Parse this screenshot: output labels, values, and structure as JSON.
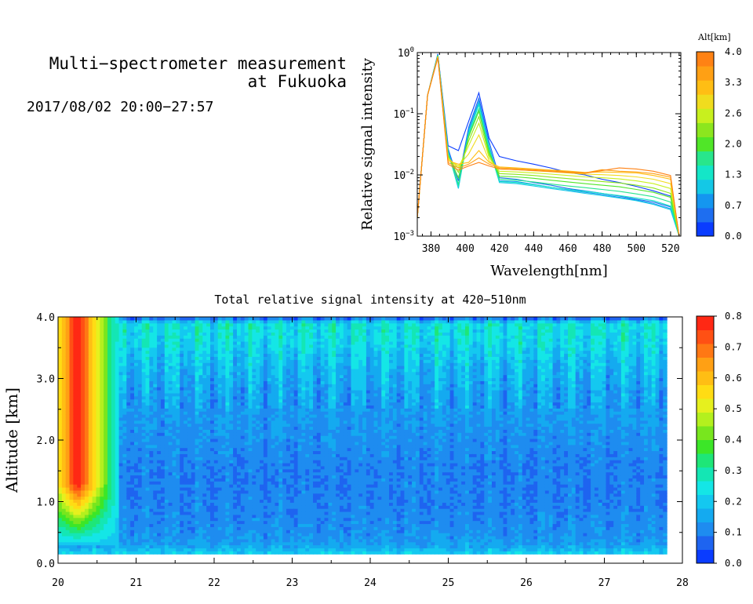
{
  "header": {
    "title_line1": "Multi−spectrometer measurement",
    "title_line2": "at Fukuoka",
    "date_range": "2017/08/02 20:00−27:57"
  },
  "chart_data": [
    {
      "type": "line",
      "title": "",
      "xlabel": "Wavelength[nm]",
      "ylabel": "Relative signal intensity",
      "xlim": [
        372,
        526
      ],
      "ylim": [
        0.001,
        1
      ],
      "yscale": "log",
      "grid": false,
      "xticks": [
        "380",
        "400",
        "420",
        "440",
        "460",
        "480",
        "500",
        "520"
      ],
      "yticks_exp": [
        "0",
        "−1",
        "−2",
        "−3"
      ],
      "ytick_base": "10",
      "x": [
        372,
        378,
        384,
        390,
        396,
        402,
        408,
        414,
        420,
        430,
        440,
        450,
        460,
        470,
        480,
        490,
        500,
        510,
        520,
        525
      ],
      "colorbar": {
        "label": "Alt[km]",
        "ticks": [
          "0.0",
          "0.7",
          "1.3",
          "2.0",
          "2.6",
          "3.3",
          "4.0"
        ],
        "colors": [
          "#0a3cff",
          "#1e6ef0",
          "#1496f0",
          "#14c8e6",
          "#14e6c8",
          "#28e68c",
          "#50e628",
          "#8ce61e",
          "#c8f01e",
          "#f0dc1e",
          "#ffbe14",
          "#ffa014",
          "#ff8214"
        ]
      },
      "series": [
        {
          "color": "#0a3cff",
          "values": [
            0.002,
            0.2,
            0.95,
            0.03,
            0.025,
            0.075,
            0.22,
            0.04,
            0.02,
            0.017,
            0.015,
            0.013,
            0.011,
            0.01,
            0.0085,
            0.0075,
            0.0065,
            0.0055,
            0.0045,
            0.001
          ]
        },
        {
          "color": "#1e6ef0",
          "values": [
            0.002,
            0.2,
            0.93,
            0.027,
            0.008,
            0.06,
            0.18,
            0.035,
            0.009,
            0.0085,
            0.0075,
            0.0068,
            0.006,
            0.0055,
            0.005,
            0.0045,
            0.004,
            0.0036,
            0.003,
            0.001
          ]
        },
        {
          "color": "#1496f0",
          "values": [
            0.002,
            0.2,
            0.92,
            0.025,
            0.007,
            0.055,
            0.16,
            0.03,
            0.008,
            0.0078,
            0.007,
            0.0063,
            0.0057,
            0.0052,
            0.0048,
            0.0043,
            0.0039,
            0.0034,
            0.0028,
            0.001
          ]
        },
        {
          "color": "#14c8e6",
          "values": [
            0.002,
            0.2,
            0.91,
            0.024,
            0.006,
            0.05,
            0.15,
            0.028,
            0.0075,
            0.0072,
            0.0066,
            0.006,
            0.0055,
            0.005,
            0.0046,
            0.0042,
            0.0038,
            0.0033,
            0.0027,
            0.001
          ]
        },
        {
          "color": "#14e6c8",
          "values": [
            0.002,
            0.2,
            0.9,
            0.023,
            0.0065,
            0.048,
            0.14,
            0.027,
            0.0078,
            0.0075,
            0.0069,
            0.0063,
            0.0058,
            0.0054,
            0.005,
            0.0046,
            0.0042,
            0.0038,
            0.0031,
            0.001
          ]
        },
        {
          "color": "#28e68c",
          "values": [
            0.002,
            0.2,
            0.89,
            0.022,
            0.007,
            0.045,
            0.12,
            0.025,
            0.0085,
            0.0082,
            0.0077,
            0.0071,
            0.0066,
            0.0062,
            0.0058,
            0.0054,
            0.0049,
            0.0044,
            0.0036,
            0.001
          ]
        },
        {
          "color": "#50e628",
          "values": [
            0.002,
            0.2,
            0.88,
            0.021,
            0.009,
            0.042,
            0.11,
            0.023,
            0.0095,
            0.0093,
            0.0088,
            0.0082,
            0.0077,
            0.0072,
            0.0068,
            0.0064,
            0.0058,
            0.0052,
            0.0043,
            0.001
          ]
        },
        {
          "color": "#8ce61e",
          "values": [
            0.002,
            0.2,
            0.87,
            0.02,
            0.011,
            0.036,
            0.09,
            0.021,
            0.0105,
            0.0102,
            0.0098,
            0.0092,
            0.0087,
            0.0082,
            0.0078,
            0.0074,
            0.0068,
            0.0061,
            0.005,
            0.001
          ]
        },
        {
          "color": "#c8f01e",
          "values": [
            0.002,
            0.2,
            0.86,
            0.019,
            0.013,
            0.03,
            0.07,
            0.019,
            0.0115,
            0.0112,
            0.0108,
            0.0103,
            0.0098,
            0.0093,
            0.009,
            0.0086,
            0.008,
            0.0072,
            0.006,
            0.001
          ]
        },
        {
          "color": "#f0dc1e",
          "values": [
            0.002,
            0.2,
            0.85,
            0.018,
            0.014,
            0.022,
            0.045,
            0.017,
            0.0125,
            0.0122,
            0.0117,
            0.0113,
            0.0108,
            0.0103,
            0.0101,
            0.0098,
            0.0093,
            0.0085,
            0.0072,
            0.001
          ]
        },
        {
          "color": "#ffbe14",
          "values": [
            0.002,
            0.2,
            0.84,
            0.017,
            0.015,
            0.016,
            0.025,
            0.016,
            0.0135,
            0.013,
            0.0125,
            0.012,
            0.0116,
            0.011,
            0.0112,
            0.011,
            0.0108,
            0.0098,
            0.0085,
            0.001
          ]
        },
        {
          "color": "#ffa014",
          "values": [
            0.002,
            0.2,
            0.83,
            0.016,
            0.013,
            0.015,
            0.019,
            0.015,
            0.013,
            0.0127,
            0.0122,
            0.0118,
            0.0113,
            0.0108,
            0.0122,
            0.0115,
            0.0112,
            0.0105,
            0.0092,
            0.001
          ]
        },
        {
          "color": "#ff8214",
          "values": [
            0.002,
            0.2,
            0.82,
            0.015,
            0.012,
            0.014,
            0.016,
            0.014,
            0.0125,
            0.0122,
            0.0118,
            0.0114,
            0.011,
            0.0106,
            0.0118,
            0.013,
            0.0125,
            0.0115,
            0.0098,
            0.001
          ]
        }
      ]
    },
    {
      "type": "heatmap",
      "title": "Total relative signal intensity at 420−510nm",
      "xlabel": "",
      "ylabel": "Altitude [km]",
      "xlim": [
        20,
        28
      ],
      "ylim": [
        0,
        4
      ],
      "xticks": [
        "20",
        "21",
        "22",
        "23",
        "24",
        "25",
        "26",
        "27",
        "28"
      ],
      "yticks": [
        "0.0",
        "1.0",
        "2.0",
        "3.0",
        "4.0"
      ],
      "colorbar": {
        "ticks": [
          "0.0",
          "0.1",
          "0.2",
          "0.3",
          "0.4",
          "0.5",
          "0.6",
          "0.7",
          "0.8"
        ],
        "range": [
          0,
          0.8
        ],
        "colors": [
          "#0a3cff",
          "#1e64f0",
          "#1e8cf0",
          "#14aaf0",
          "#14c8f0",
          "#14e6e6",
          "#14e6b4",
          "#1ee678",
          "#3ce628",
          "#78e61e",
          "#b4f01e",
          "#e6f01e",
          "#ffdc14",
          "#ffbe14",
          "#ffa014",
          "#ff7814",
          "#ff5014",
          "#ff2814"
        ]
      },
      "data_extent": {
        "x_start": 20,
        "x_end": 27.8,
        "alt_bottom": 0.15,
        "alt_top": 4.0
      },
      "altitude_profile_km": [
        0.15,
        0.3,
        0.5,
        0.7,
        1.0,
        1.3,
        1.6,
        2.0,
        2.4,
        2.8,
        3.2,
        3.6,
        3.9,
        4.0
      ],
      "typical_intensity": [
        0.22,
        0.14,
        0.12,
        0.11,
        0.1,
        0.1,
        0.1,
        0.12,
        0.13,
        0.15,
        0.18,
        0.23,
        0.25,
        0.05
      ],
      "hotspot": {
        "time_range": [
          20,
          20.8
        ],
        "peak_intensity": 0.8,
        "altitude_range_km": [
          1.0,
          4.0
        ]
      }
    }
  ]
}
